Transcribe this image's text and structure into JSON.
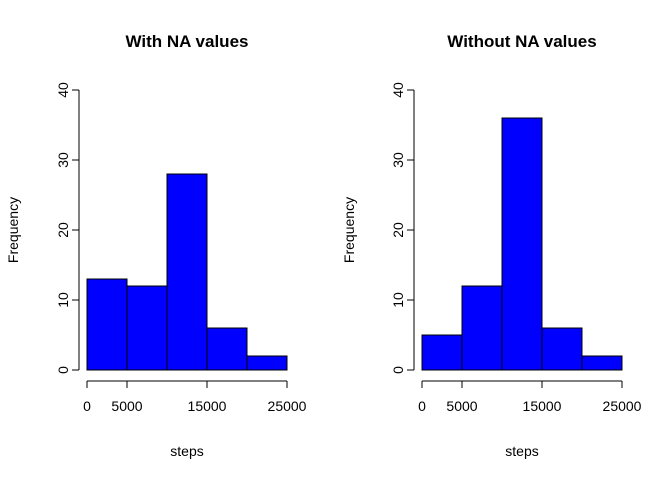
{
  "chart_data": [
    {
      "type": "bar",
      "title": "With NA values",
      "xlabel": "steps",
      "ylabel": "Frequency",
      "bin_edges": [
        0,
        5000,
        10000,
        15000,
        20000,
        25000
      ],
      "values": [
        13,
        12,
        28,
        6,
        2
      ],
      "bar_color": "#0000FF",
      "xlim": [
        0,
        25000
      ],
      "ylim": [
        0,
        40
      ],
      "x_ticks": [
        0,
        5000,
        15000,
        25000
      ],
      "y_ticks": [
        0,
        10,
        20,
        30,
        40
      ],
      "grid": false
    },
    {
      "type": "bar",
      "title": "Without NA values",
      "xlabel": "steps",
      "ylabel": "Frequency",
      "bin_edges": [
        0,
        5000,
        10000,
        15000,
        20000,
        25000
      ],
      "values": [
        5,
        12,
        36,
        6,
        2
      ],
      "bar_color": "#0000FF",
      "xlim": [
        0,
        25000
      ],
      "ylim": [
        0,
        40
      ],
      "x_ticks": [
        0,
        5000,
        15000,
        25000
      ],
      "y_ticks": [
        0,
        10,
        20,
        30,
        40
      ],
      "grid": false
    }
  ]
}
